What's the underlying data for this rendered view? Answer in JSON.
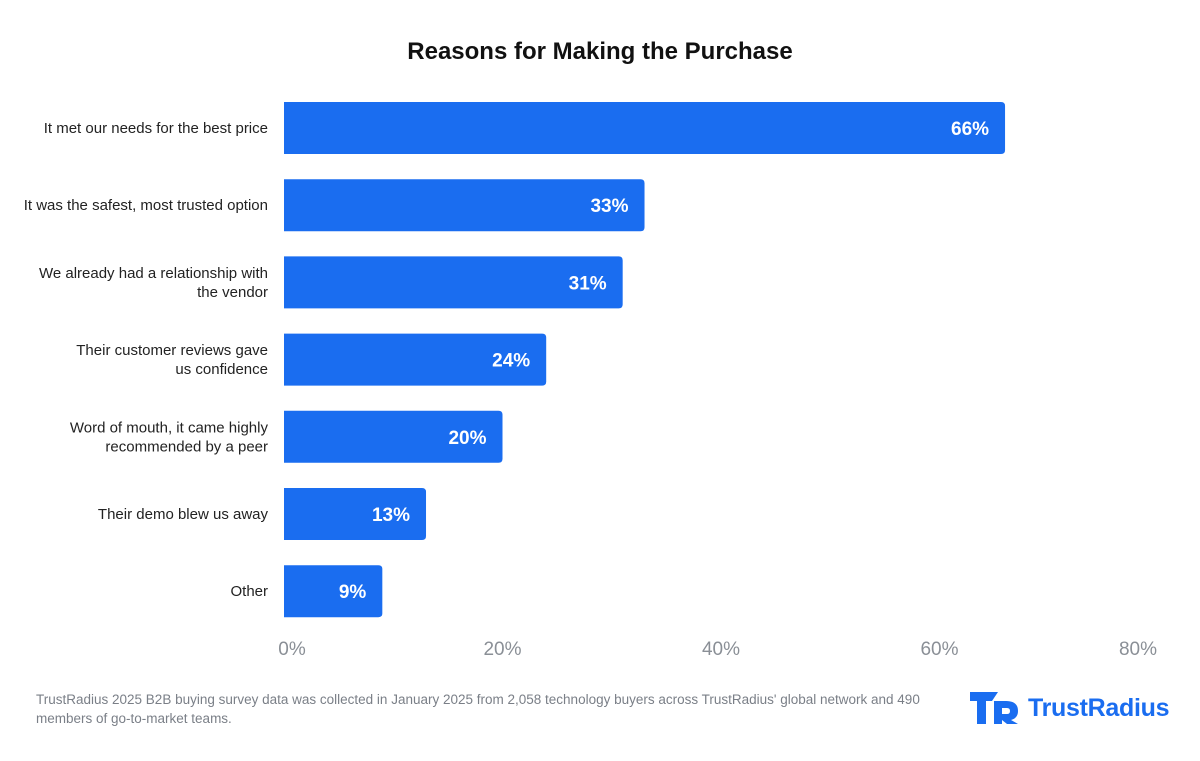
{
  "chart_data": {
    "type": "bar",
    "orientation": "horizontal",
    "title": "Reasons for Making the Purchase",
    "categories": [
      [
        "It met our needs for the best price"
      ],
      [
        "It was the safest, most trusted option"
      ],
      [
        "We already had a relationship with",
        "the vendor"
      ],
      [
        "Their customer reviews gave",
        "us confidence"
      ],
      [
        "Word of mouth, it came highly",
        "recommended by a peer"
      ],
      [
        "Their demo blew us away"
      ],
      [
        "Other"
      ]
    ],
    "values": [
      66,
      33,
      31,
      24,
      20,
      13,
      9
    ],
    "data_labels": [
      "66%",
      "33%",
      "31%",
      "24%",
      "20%",
      "13%",
      "9%"
    ],
    "xlim": [
      0,
      80
    ],
    "x_ticks": [
      0,
      20,
      40,
      60,
      80
    ],
    "x_tick_labels": [
      "0%",
      "20%",
      "40%",
      "60%",
      "80%"
    ],
    "grid": false,
    "legend": "none",
    "bar_color": "#1a6df0",
    "label_color": "#ffffff",
    "tick_color": "#8a8f96"
  },
  "footnote": "TrustRadius 2025 B2B buying survey data was collected in January 2025 from 2,058 technology buyers across TrustRadius' global network and 490 members of go-to-market teams.",
  "logo": {
    "text": "TrustRadius",
    "icon": "trustradius-logo-icon",
    "color": "#1a6df0"
  }
}
